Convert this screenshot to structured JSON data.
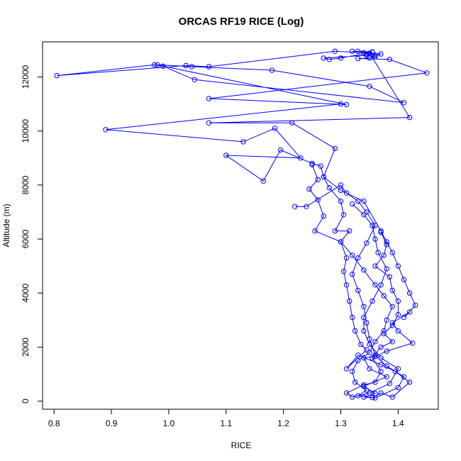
{
  "chart_data": {
    "type": "line",
    "title": "ORCAS RF19 RICE (Log)",
    "xlabel": "RICE",
    "ylabel": "Altitude (m)",
    "xlim": [
      0.78,
      1.47
    ],
    "ylim": [
      -300,
      13300
    ],
    "xticks": [
      0.8,
      0.9,
      1.0,
      1.1,
      1.2,
      1.3,
      1.4
    ],
    "xtick_labels": [
      "0.8",
      "0.9",
      "1.0",
      "1.1",
      "1.2",
      "1.3",
      "1.4"
    ],
    "yticks": [
      0,
      2000,
      4000,
      6000,
      8000,
      10000,
      12000
    ],
    "ytick_labels": [
      "0",
      "2000",
      "4000",
      "6000",
      "8000",
      "10000",
      "12000"
    ],
    "grid": false,
    "markers": "open-circle",
    "series": [
      {
        "color": "#0000ff",
        "points": [
          [
            1.32,
            12950
          ],
          [
            1.355,
            12930
          ],
          [
            1.345,
            12850
          ],
          [
            1.36,
            12800
          ],
          [
            1.35,
            12700
          ],
          [
            1.33,
            12680
          ],
          [
            1.385,
            12650
          ],
          [
            1.45,
            12150
          ],
          [
            1.07,
            11200
          ],
          [
            1.31,
            10980
          ],
          [
            0.98,
            12450
          ],
          [
            1.04,
            12380
          ],
          [
            1.18,
            12250
          ],
          [
            1.35,
            11650
          ],
          [
            1.41,
            11050
          ],
          [
            1.045,
            11900
          ],
          [
            0.99,
            12400
          ],
          [
            0.975,
            12450
          ],
          [
            0.805,
            12050
          ],
          [
            1.03,
            12420
          ],
          [
            1.07,
            12380
          ],
          [
            1.29,
            12950
          ],
          [
            1.34,
            12900
          ],
          [
            1.37,
            12850
          ],
          [
            1.36,
            12750
          ],
          [
            1.345,
            12800
          ],
          [
            1.27,
            12700
          ],
          [
            1.28,
            12650
          ],
          [
            1.3,
            12700
          ],
          [
            1.355,
            12920
          ],
          [
            1.33,
            12950
          ],
          [
            1.35,
            12880
          ],
          [
            1.42,
            10500
          ],
          [
            1.07,
            10300
          ],
          [
            1.215,
            10300
          ],
          [
            1.29,
            9350
          ],
          [
            1.27,
            8300
          ],
          [
            1.3,
            7800
          ],
          [
            1.34,
            7400
          ],
          [
            1.37,
            6300
          ],
          [
            1.38,
            5900
          ],
          [
            1.39,
            5500
          ],
          [
            1.4,
            5000
          ],
          [
            1.41,
            4500
          ],
          [
            1.42,
            4000
          ],
          [
            1.43,
            3550
          ],
          [
            1.41,
            3100
          ],
          [
            1.42,
            3300
          ],
          [
            1.39,
            2900
          ],
          [
            1.4,
            2600
          ],
          [
            1.425,
            2150
          ],
          [
            1.38,
            1850
          ],
          [
            1.36,
            1650
          ],
          [
            1.34,
            1600
          ],
          [
            1.35,
            1200
          ],
          [
            1.38,
            900
          ],
          [
            1.34,
            550
          ],
          [
            1.36,
            280
          ],
          [
            1.34,
            150
          ],
          [
            1.355,
            130
          ],
          [
            1.37,
            300
          ],
          [
            1.39,
            150
          ],
          [
            1.42,
            700
          ],
          [
            1.395,
            1100
          ],
          [
            1.37,
            1350
          ],
          [
            1.33,
            1700
          ],
          [
            1.31,
            1200
          ],
          [
            1.345,
            1900
          ],
          [
            1.335,
            2100
          ],
          [
            1.325,
            2600
          ],
          [
            1.32,
            3100
          ],
          [
            1.315,
            3700
          ],
          [
            1.31,
            4300
          ],
          [
            1.305,
            4800
          ],
          [
            1.31,
            5300
          ],
          [
            1.3,
            5900
          ],
          [
            1.315,
            6300
          ],
          [
            1.29,
            6300
          ],
          [
            1.305,
            6900
          ],
          [
            1.3,
            7400
          ],
          [
            1.28,
            7900
          ],
          [
            1.27,
            8300
          ],
          [
            1.265,
            8700
          ],
          [
            1.25,
            8800
          ],
          [
            1.195,
            9300
          ],
          [
            1.165,
            8150
          ],
          [
            1.1,
            9100
          ],
          [
            1.23,
            9000
          ],
          [
            1.185,
            10100
          ],
          [
            1.13,
            9600
          ],
          [
            0.89,
            10050
          ],
          [
            1.3,
            11000
          ]
        ]
      },
      {
        "color": "#0000ff",
        "points": [
          [
            1.25,
            8750
          ],
          [
            1.26,
            8200
          ],
          [
            1.245,
            7850
          ],
          [
            1.26,
            7450
          ],
          [
            1.27,
            6850
          ],
          [
            1.255,
            6300
          ],
          [
            1.3,
            5900
          ],
          [
            1.32,
            5400
          ],
          [
            1.34,
            4850
          ],
          [
            1.36,
            4300
          ],
          [
            1.375,
            3900
          ],
          [
            1.39,
            3500
          ],
          [
            1.38,
            3000
          ],
          [
            1.375,
            2600
          ],
          [
            1.36,
            2200
          ],
          [
            1.35,
            1800
          ],
          [
            1.33,
            1500
          ],
          [
            1.32,
            1100
          ],
          [
            1.325,
            700
          ],
          [
            1.345,
            400
          ],
          [
            1.33,
            200
          ],
          [
            1.36,
            120
          ],
          [
            1.4,
            500
          ],
          [
            1.41,
            900
          ],
          [
            1.38,
            1300
          ],
          [
            1.36,
            1700
          ],
          [
            1.35,
            2300
          ],
          [
            1.345,
            2900
          ],
          [
            1.34,
            3500
          ],
          [
            1.33,
            4100
          ],
          [
            1.32,
            4700
          ],
          [
            1.33,
            5300
          ],
          [
            1.345,
            5850
          ],
          [
            1.36,
            6500
          ],
          [
            1.345,
            7000
          ],
          [
            1.33,
            7400
          ],
          [
            1.31,
            7700
          ],
          [
            1.3,
            8000
          ],
          [
            1.24,
            7200
          ],
          [
            1.22,
            7200
          ]
        ]
      },
      {
        "color": "#0000ff",
        "points": [
          [
            1.37,
            6250
          ],
          [
            1.38,
            5800
          ],
          [
            1.375,
            5400
          ],
          [
            1.36,
            5000
          ],
          [
            1.385,
            4600
          ],
          [
            1.39,
            4100
          ],
          [
            1.4,
            3700
          ],
          [
            1.4,
            3200
          ],
          [
            1.39,
            2800
          ],
          [
            1.375,
            2500
          ],
          [
            1.39,
            2200
          ],
          [
            1.37,
            2000
          ],
          [
            1.355,
            1600
          ],
          [
            1.37,
            1100
          ],
          [
            1.36,
            700
          ],
          [
            1.34,
            600
          ],
          [
            1.31,
            300
          ],
          [
            1.32,
            150
          ],
          [
            1.35,
            300
          ],
          [
            1.385,
            650
          ],
          [
            1.4,
            1200
          ],
          [
            1.37,
            1600
          ],
          [
            1.35,
            2100
          ],
          [
            1.34,
            2600
          ],
          [
            1.34,
            3100
          ],
          [
            1.355,
            3700
          ],
          [
            1.37,
            4300
          ],
          [
            1.38,
            4900
          ],
          [
            1.365,
            5500
          ],
          [
            1.36,
            6000
          ],
          [
            1.355,
            6500
          ],
          [
            1.34,
            6900
          ],
          [
            1.32,
            7300
          ]
        ]
      }
    ]
  }
}
